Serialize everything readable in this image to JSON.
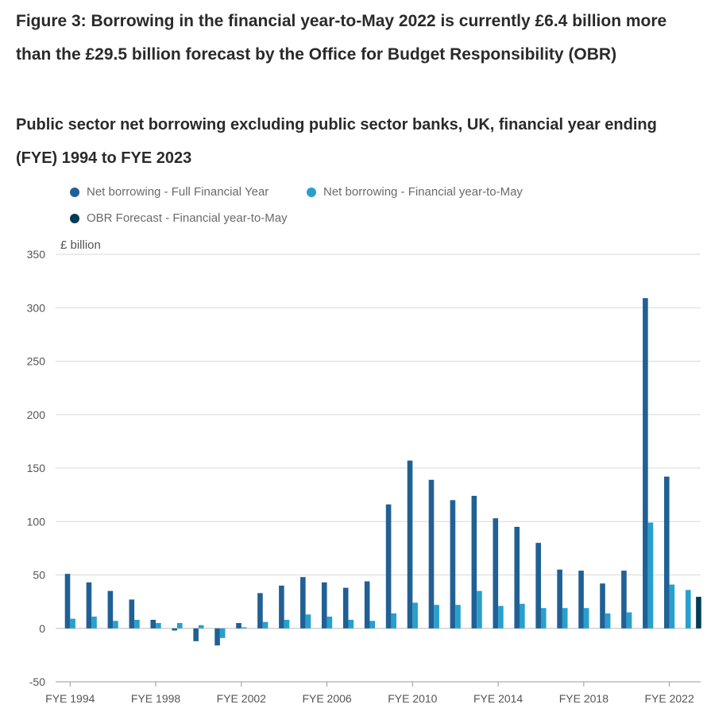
{
  "title": "Figure 3: Borrowing in the financial year-to-May 2022 is currently £6.4 billion more than the £29.5 billion forecast by the Office for Budget Responsibility (OBR)",
  "subtitle": "Public sector net borrowing excluding public sector banks, UK, financial year ending (FYE) 1994 to FYE 2023",
  "colors": {
    "full_year": "#206095",
    "ytd": "#27a0cc",
    "obr": "#003c57",
    "grid": "#d9d9d9",
    "axis": "#555555"
  },
  "chart_data": {
    "type": "bar",
    "ylabel": "£ billion",
    "ylim": [
      -50,
      350
    ],
    "yticks": [
      -50,
      0,
      50,
      100,
      150,
      200,
      250,
      300,
      350
    ],
    "grid": true,
    "legend_position": "top",
    "categories": [
      "FYE 1994",
      "FYE 1995",
      "FYE 1996",
      "FYE 1997",
      "FYE 1998",
      "FYE 1999",
      "FYE 2000",
      "FYE 2001",
      "FYE 2002",
      "FYE 2003",
      "FYE 2004",
      "FYE 2005",
      "FYE 2006",
      "FYE 2007",
      "FYE 2008",
      "FYE 2009",
      "FYE 2010",
      "FYE 2011",
      "FYE 2012",
      "FYE 2013",
      "FYE 2014",
      "FYE 2015",
      "FYE 2016",
      "FYE 2017",
      "FYE 2018",
      "FYE 2019",
      "FYE 2020",
      "FYE 2021",
      "FYE 2022",
      "FYE 2023"
    ],
    "xtick_labels": [
      "FYE 1994",
      "FYE 1998",
      "FYE 2002",
      "FYE 2006",
      "FYE 2010",
      "FYE 2014",
      "FYE 2018",
      "FYE 2022"
    ],
    "series": [
      {
        "name": "Net borrowing - Full Financial Year",
        "values": [
          51,
          43,
          35,
          27,
          8,
          -2,
          -12,
          -16,
          5,
          33,
          40,
          48,
          43,
          38,
          44,
          116,
          157,
          139,
          120,
          124,
          103,
          95,
          80,
          55,
          54,
          42,
          54,
          309,
          142,
          null
        ]
      },
      {
        "name": "Net borrowing - Financial year-to-May",
        "values": [
          9,
          11,
          7,
          8,
          5,
          5,
          3,
          -9,
          1,
          6,
          8,
          13,
          11,
          8,
          7,
          14,
          24,
          22,
          22,
          35,
          21,
          23,
          19,
          19,
          19,
          14,
          15,
          99,
          41,
          35.9
        ]
      },
      {
        "name": "OBR Forecast - Financial year-to-May",
        "values": [
          null,
          null,
          null,
          null,
          null,
          null,
          null,
          null,
          null,
          null,
          null,
          null,
          null,
          null,
          null,
          null,
          null,
          null,
          null,
          null,
          null,
          null,
          null,
          null,
          null,
          null,
          null,
          null,
          null,
          29.5
        ]
      }
    ]
  }
}
